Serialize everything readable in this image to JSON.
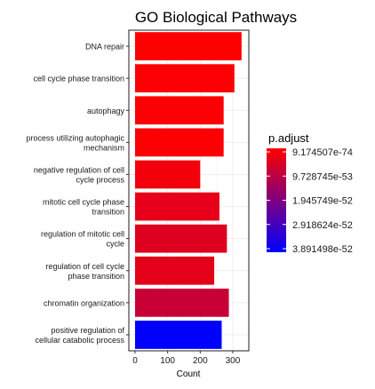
{
  "chart_data": {
    "type": "bar",
    "orientation": "horizontal",
    "title": "GO Biological Pathways",
    "xlabel": "Count",
    "ylabel": "",
    "xlim": [
      0,
      340
    ],
    "x_ticks": [
      0,
      100,
      200,
      300
    ],
    "grid": true,
    "categories": [
      [
        "DNA repair"
      ],
      [
        "cell cycle phase transition"
      ],
      [
        "autophagy"
      ],
      [
        "process utilizing autophagic",
        "mechanism"
      ],
      [
        "negative regulation of cell",
        "cycle process"
      ],
      [
        "mitotic cell cycle phase",
        "transition"
      ],
      [
        "regulation of mitotic cell",
        "cycle"
      ],
      [
        "regulation of cell cycle",
        "phase transition"
      ],
      [
        "chromatin organization"
      ],
      [
        "positive regulation of",
        "cellular catabolic process"
      ]
    ],
    "values": [
      327,
      305,
      272,
      272,
      200,
      259,
      282,
      243,
      288,
      266
    ],
    "bar_colors": [
      "#ff0000",
      "#fd0004",
      "#fc0003",
      "#fc0003",
      "#f3000c",
      "#e8001a",
      "#df0020",
      "#e50019",
      "#c90036",
      "#0000ff"
    ],
    "legend": {
      "title": "p.adjust",
      "placement": "right",
      "labels": [
        "9.174507e-74",
        "9.728745e-53",
        "1.945749e-52",
        "2.918624e-52",
        "3.891498e-52"
      ],
      "gradient": [
        "#ff0000",
        "#0000ff"
      ]
    }
  }
}
